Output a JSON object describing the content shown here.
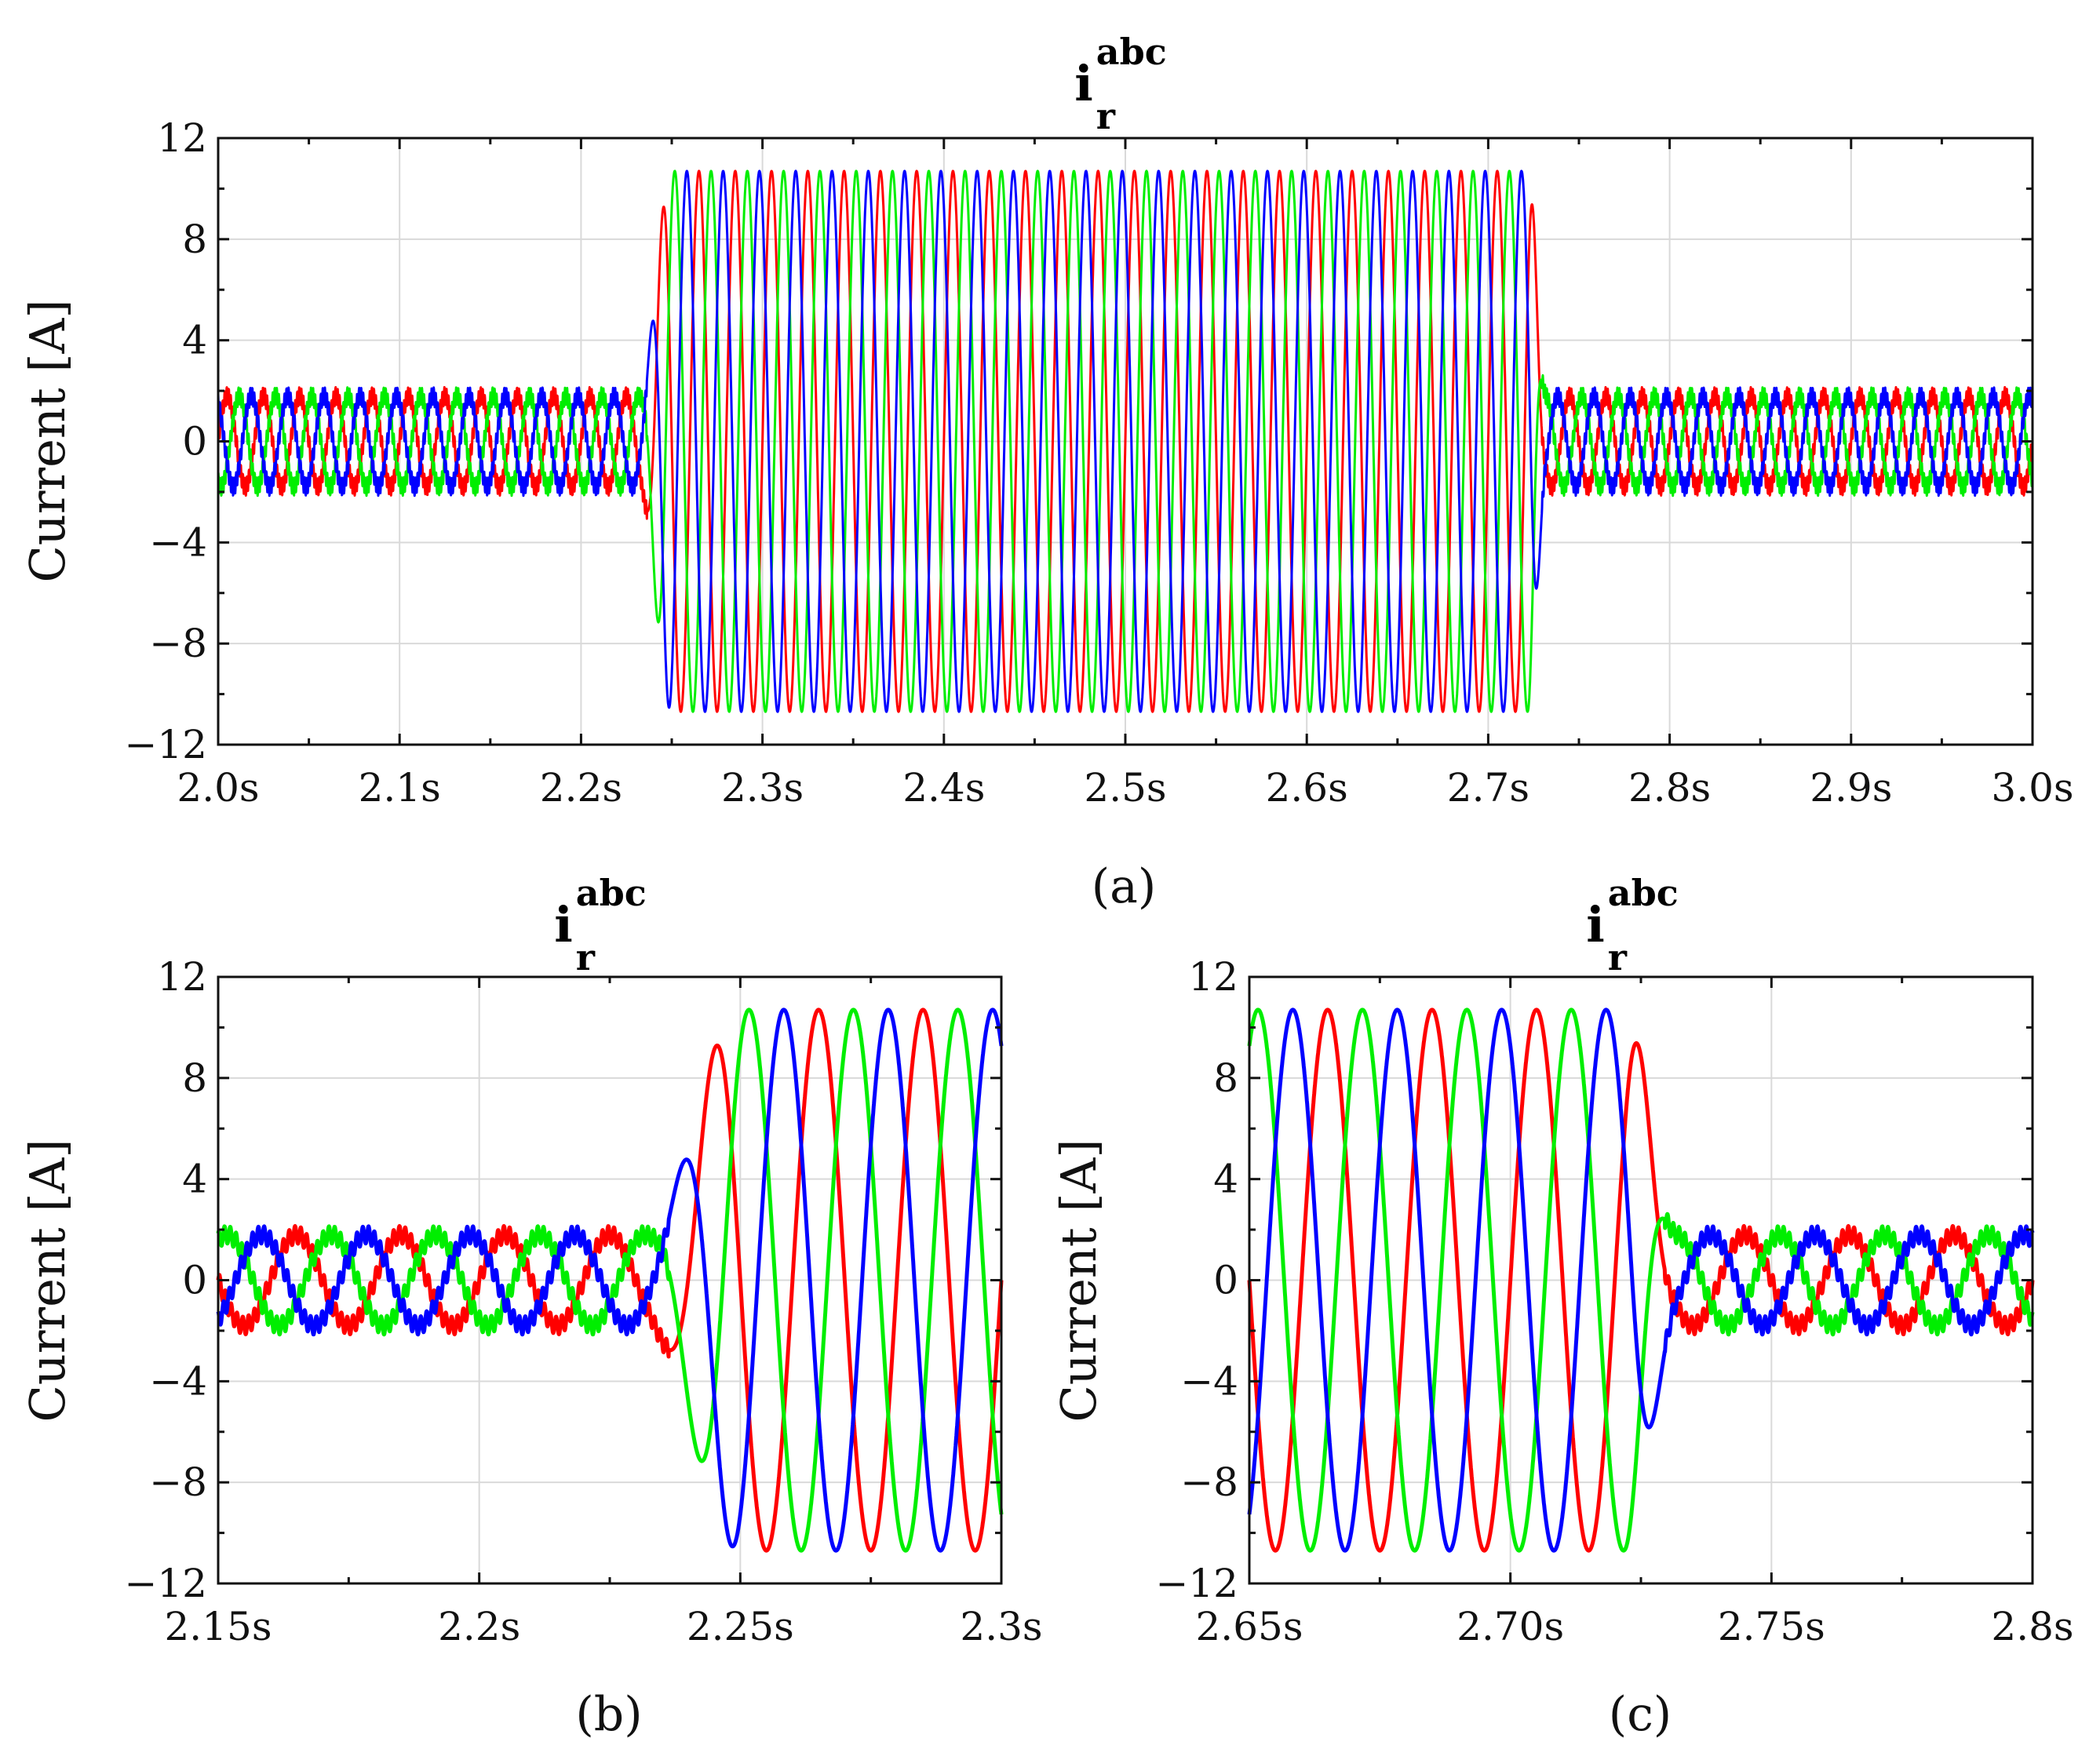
{
  "chart_data": [
    {
      "type": "line",
      "caption": "(a)",
      "title": {
        "base": "i",
        "sub": "r",
        "sup": "abc"
      },
      "ylabel": "Current [A]",
      "xlim": [
        2.0,
        3.0
      ],
      "ylim": [
        -12,
        12
      ],
      "xticks": [
        2.0,
        2.1,
        2.2,
        2.3,
        2.4,
        2.5,
        2.6,
        2.7,
        2.8,
        2.9,
        3.0
      ],
      "xtick_labels": [
        "2.0s",
        "2.1s",
        "2.2s",
        "2.3s",
        "2.4s",
        "2.5s",
        "2.6s",
        "2.7s",
        "2.8s",
        "2.9s",
        "3.0s"
      ],
      "yticks": [
        -12,
        -8,
        -4,
        0,
        4,
        8,
        12
      ],
      "ytick_labels": [
        "−12",
        "−8",
        "−4",
        "0",
        "4",
        "8",
        "12"
      ],
      "grid": true,
      "series_colors": [
        "#ff0000",
        "#00ee00",
        "#0000ff"
      ],
      "segments": [
        {
          "t": [
            2.0,
            2.232
          ],
          "amplitude": 1.8,
          "frequency": 50
        },
        {
          "t": [
            2.232,
            2.25
          ],
          "amplitude": "transition 1.8 to 10.7"
        },
        {
          "t": [
            2.25,
            2.722
          ],
          "amplitude": 10.7,
          "frequency": 50
        },
        {
          "t": [
            2.722,
            2.732
          ],
          "amplitude": "transition 10.7 to 1.8"
        },
        {
          "t": [
            2.732,
            3.0
          ],
          "amplitude": 1.8,
          "frequency": 50
        }
      ],
      "peaks": {
        "normal": 1.8,
        "fault": 10.7,
        "max": 10.9
      }
    },
    {
      "type": "line",
      "caption": "(b)",
      "title": {
        "base": "i",
        "sub": "r",
        "sup": "abc"
      },
      "ylabel": "Current [A]",
      "xlim": [
        2.15,
        2.3
      ],
      "ylim": [
        -12,
        12
      ],
      "xticks": [
        2.15,
        2.2,
        2.25,
        2.3
      ],
      "xtick_labels": [
        "2.15s",
        "2.2s",
        "2.25s",
        "2.3s"
      ],
      "yticks": [
        -12,
        -8,
        -4,
        0,
        4,
        8,
        12
      ],
      "ytick_labels": [
        "−12",
        "−8",
        "−4",
        "0",
        "4",
        "8",
        "12"
      ],
      "grid": true,
      "series_colors": [
        "#ff0000",
        "#00ee00",
        "#0000ff"
      ],
      "fault_onset": 2.232,
      "peaks": {
        "normal": 1.8,
        "fault": 10.7,
        "max": 10.9
      }
    },
    {
      "type": "line",
      "caption": "(c)",
      "title": {
        "base": "i",
        "sub": "r",
        "sup": "abc"
      },
      "ylabel": "Current [A]",
      "xlim": [
        2.65,
        2.8
      ],
      "ylim": [
        -12,
        12
      ],
      "xticks": [
        2.65,
        2.7,
        2.75,
        2.8
      ],
      "xtick_labels": [
        "2.65s",
        "2.70s",
        "2.75s",
        "2.8s"
      ],
      "yticks": [
        -12,
        -8,
        -4,
        0,
        4,
        8,
        12
      ],
      "ytick_labels": [
        "−12",
        "−8",
        "−4",
        "0",
        "4",
        "8",
        "12"
      ],
      "grid": true,
      "series_colors": [
        "#ff0000",
        "#00ee00",
        "#0000ff"
      ],
      "fault_clear": 2.722,
      "peaks": {
        "normal": 1.8,
        "fault": 10.7
      }
    }
  ]
}
